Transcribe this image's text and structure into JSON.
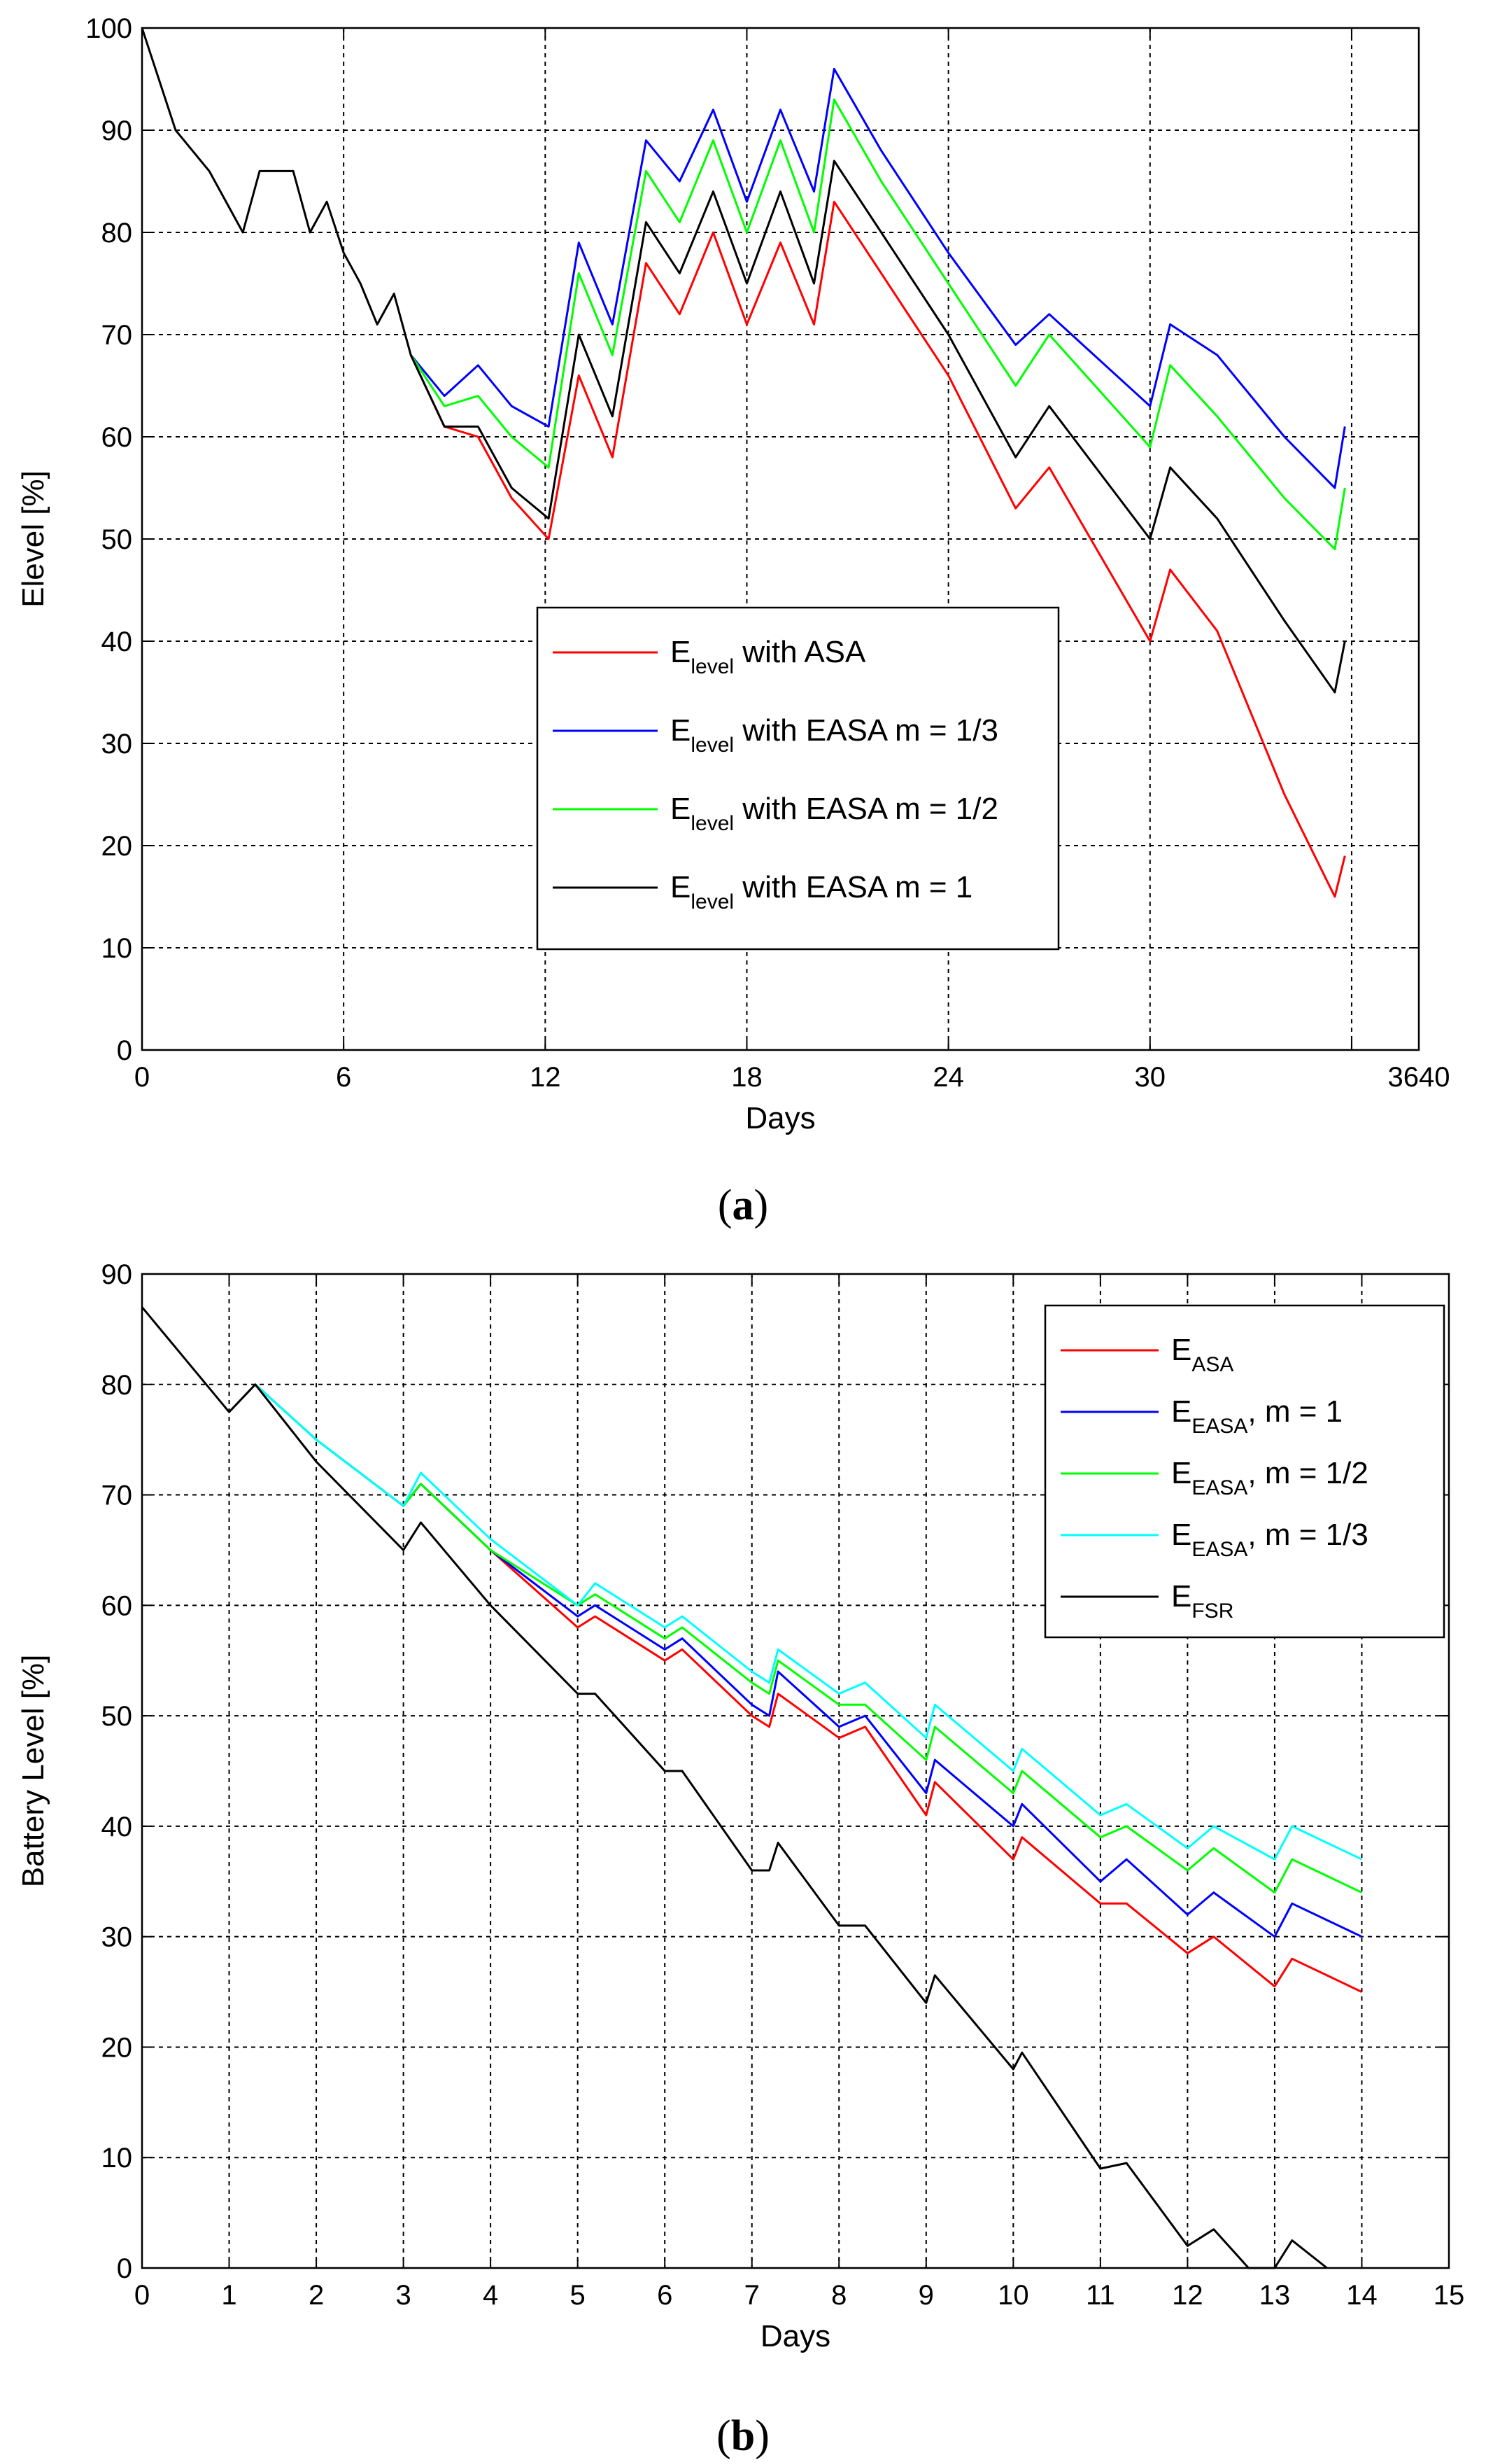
{
  "chart_data": [
    {
      "panel_label": "(a)",
      "type": "line",
      "xlabel": "Days",
      "ylabel": "Elevel [%]",
      "xlim": [
        0,
        38
      ],
      "ylim": [
        0,
        100
      ],
      "xticks": [
        0,
        6,
        12,
        18,
        24,
        30,
        36,
        40
      ],
      "xtick_labels": [
        "0",
        "6",
        "12",
        "18",
        "24",
        "30",
        "36",
        "40"
      ],
      "yticks": [
        0,
        10,
        20,
        30,
        40,
        50,
        60,
        70,
        80,
        90,
        100
      ],
      "grid": true,
      "legend": {
        "placement": "center-bottom"
      },
      "series": [
        {
          "name_main": "E",
          "name_sub": "level",
          "name_rest": " with ASA",
          "color": "#ff0000",
          "points": [
            [
              8,
              68
            ],
            [
              9,
              61
            ],
            [
              10,
              60
            ],
            [
              11,
              54
            ],
            [
              12.1,
              50
            ],
            [
              13,
              66
            ],
            [
              14,
              58
            ],
            [
              15,
              77
            ],
            [
              16,
              72
            ],
            [
              17,
              80
            ],
            [
              18,
              71
            ],
            [
              19,
              79
            ],
            [
              20,
              71
            ],
            [
              20.6,
              83
            ],
            [
              22,
              76
            ],
            [
              24,
              66
            ],
            [
              26,
              53
            ],
            [
              27,
              57
            ],
            [
              30,
              40
            ],
            [
              30.6,
              47
            ],
            [
              32,
              41
            ],
            [
              34,
              25
            ],
            [
              35.5,
              15
            ],
            [
              35.8,
              19
            ]
          ]
        },
        {
          "name_main": "E",
          "name_sub": "level",
          "name_rest": " with EASA m = 1/3",
          "color": "#0000ff",
          "points": [
            [
              8,
              68
            ],
            [
              9,
              64
            ],
            [
              10,
              67
            ],
            [
              11,
              63
            ],
            [
              12.1,
              61
            ],
            [
              13,
              79
            ],
            [
              14,
              71
            ],
            [
              15,
              89
            ],
            [
              16,
              85
            ],
            [
              17,
              92
            ],
            [
              18,
              83
            ],
            [
              19,
              92
            ],
            [
              20,
              84
            ],
            [
              20.6,
              96
            ],
            [
              22,
              88
            ],
            [
              24,
              78
            ],
            [
              26,
              69
            ],
            [
              27,
              72
            ],
            [
              30,
              63
            ],
            [
              30.6,
              71
            ],
            [
              32,
              68
            ],
            [
              34,
              60
            ],
            [
              35.5,
              55
            ],
            [
              35.8,
              61
            ]
          ]
        },
        {
          "name_main": "E",
          "name_sub": "level",
          "name_rest": " with EASA m = 1/2",
          "color": "#00ff00",
          "points": [
            [
              8,
              68
            ],
            [
              9,
              63
            ],
            [
              10,
              64
            ],
            [
              11,
              60
            ],
            [
              12.1,
              57
            ],
            [
              13,
              76
            ],
            [
              14,
              68
            ],
            [
              15,
              86
            ],
            [
              16,
              81
            ],
            [
              17,
              89
            ],
            [
              18,
              80
            ],
            [
              19,
              89
            ],
            [
              20,
              80
            ],
            [
              20.6,
              93
            ],
            [
              22,
              85
            ],
            [
              24,
              75
            ],
            [
              26,
              65
            ],
            [
              27,
              70
            ],
            [
              30,
              59
            ],
            [
              30.6,
              67
            ],
            [
              32,
              62
            ],
            [
              34,
              54
            ],
            [
              35.5,
              49
            ],
            [
              35.8,
              55
            ]
          ]
        },
        {
          "name_main": "E",
          "name_sub": "level",
          "name_rest": " with EASA m = 1",
          "color": "#000000",
          "points": [
            [
              0,
              100
            ],
            [
              1,
              90
            ],
            [
              2,
              86
            ],
            [
              3,
              80
            ],
            [
              3.5,
              86
            ],
            [
              4.5,
              86
            ],
            [
              5,
              80
            ],
            [
              5.5,
              83
            ],
            [
              6,
              78
            ],
            [
              6.5,
              75
            ],
            [
              7,
              71
            ],
            [
              7.5,
              74
            ],
            [
              8,
              68
            ],
            [
              9,
              61
            ],
            [
              10,
              61
            ],
            [
              11,
              55
            ],
            [
              12.1,
              52
            ],
            [
              13,
              70
            ],
            [
              14,
              62
            ],
            [
              15,
              81
            ],
            [
              16,
              76
            ],
            [
              17,
              84
            ],
            [
              18,
              75
            ],
            [
              19,
              84
            ],
            [
              20,
              75
            ],
            [
              20.6,
              87
            ],
            [
              22,
              80
            ],
            [
              24,
              70
            ],
            [
              26,
              58
            ],
            [
              27,
              63
            ],
            [
              30,
              50
            ],
            [
              30.6,
              57
            ],
            [
              32,
              52
            ],
            [
              34,
              42
            ],
            [
              35.5,
              35
            ],
            [
              35.8,
              40
            ]
          ]
        }
      ]
    },
    {
      "panel_label": "(b)",
      "type": "line",
      "xlabel": "Days",
      "ylabel": "Battery Level [%]",
      "xlim": [
        0,
        15
      ],
      "ylim": [
        0,
        90
      ],
      "xticks": [
        0,
        1,
        2,
        3,
        4,
        5,
        6,
        7,
        8,
        9,
        10,
        11,
        12,
        13,
        14,
        15
      ],
      "yticks": [
        0,
        10,
        20,
        30,
        40,
        50,
        60,
        70,
        80,
        90
      ],
      "grid": true,
      "legend": {
        "placement": "top-right"
      },
      "series": [
        {
          "name_main": "E",
          "name_sub": "ASA",
          "name_rest": "",
          "color": "#ff0000",
          "points": [
            [
              1.3,
              80
            ],
            [
              2,
              75
            ],
            [
              3,
              69
            ],
            [
              3.2,
              71
            ],
            [
              4,
              65
            ],
            [
              5,
              58
            ],
            [
              5.2,
              59
            ],
            [
              6,
              55
            ],
            [
              6.2,
              56
            ],
            [
              7,
              50
            ],
            [
              7.2,
              49
            ],
            [
              7.3,
              52
            ],
            [
              8,
              48
            ],
            [
              8.3,
              49
            ],
            [
              9,
              41
            ],
            [
              9.1,
              44
            ],
            [
              10,
              37
            ],
            [
              10.1,
              39
            ],
            [
              11,
              33
            ],
            [
              11.3,
              33
            ],
            [
              12,
              28.5
            ],
            [
              12.3,
              30
            ],
            [
              13,
              25.5
            ],
            [
              13.2,
              28
            ],
            [
              14,
              25
            ]
          ]
        },
        {
          "name_main": "E",
          "name_sub": "EASA",
          "name_rest": ", m = 1",
          "color": "#0000ff",
          "points": [
            [
              1.3,
              80
            ],
            [
              2,
              75
            ],
            [
              3,
              69
            ],
            [
              3.2,
              71
            ],
            [
              4,
              65
            ],
            [
              5,
              59
            ],
            [
              5.2,
              60
            ],
            [
              6,
              56
            ],
            [
              6.2,
              57
            ],
            [
              7,
              51
            ],
            [
              7.2,
              50
            ],
            [
              7.3,
              54
            ],
            [
              8,
              49
            ],
            [
              8.3,
              50
            ],
            [
              9,
              43
            ],
            [
              9.1,
              46
            ],
            [
              10,
              40
            ],
            [
              10.1,
              42
            ],
            [
              11,
              35
            ],
            [
              11.3,
              37
            ],
            [
              12,
              32
            ],
            [
              12.3,
              34
            ],
            [
              13,
              30
            ],
            [
              13.2,
              33
            ],
            [
              14,
              30
            ]
          ]
        },
        {
          "name_main": "E",
          "name_sub": "EASA",
          "name_rest": ", m = 1/2",
          "color": "#00ff00",
          "points": [
            [
              1.3,
              80
            ],
            [
              2,
              75
            ],
            [
              3,
              69
            ],
            [
              3.2,
              71
            ],
            [
              4,
              65
            ],
            [
              5,
              60
            ],
            [
              5.2,
              61
            ],
            [
              6,
              57
            ],
            [
              6.2,
              58
            ],
            [
              7,
              53
            ],
            [
              7.2,
              52
            ],
            [
              7.3,
              55
            ],
            [
              8,
              51
            ],
            [
              8.3,
              51
            ],
            [
              9,
              46
            ],
            [
              9.1,
              49
            ],
            [
              10,
              43
            ],
            [
              10.1,
              45
            ],
            [
              11,
              39
            ],
            [
              11.3,
              40
            ],
            [
              12,
              36
            ],
            [
              12.3,
              38
            ],
            [
              13,
              34
            ],
            [
              13.2,
              37
            ],
            [
              14,
              34
            ]
          ]
        },
        {
          "name_main": "E",
          "name_sub": "EASA",
          "name_rest": ", m = 1/3",
          "color": "#00ffff",
          "points": [
            [
              1.3,
              80
            ],
            [
              2,
              75
            ],
            [
              3,
              69
            ],
            [
              3.2,
              72
            ],
            [
              4,
              66
            ],
            [
              5,
              60
            ],
            [
              5.2,
              62
            ],
            [
              6,
              58
            ],
            [
              6.2,
              59
            ],
            [
              7,
              54
            ],
            [
              7.2,
              53
            ],
            [
              7.3,
              56
            ],
            [
              8,
              52
            ],
            [
              8.3,
              53
            ],
            [
              9,
              48
            ],
            [
              9.1,
              51
            ],
            [
              10,
              45
            ],
            [
              10.1,
              47
            ],
            [
              11,
              41
            ],
            [
              11.3,
              42
            ],
            [
              12,
              38
            ],
            [
              12.3,
              40
            ],
            [
              13,
              37
            ],
            [
              13.2,
              40
            ],
            [
              14,
              37
            ]
          ]
        },
        {
          "name_main": "E",
          "name_sub": "FSR",
          "name_rest": "",
          "color": "#000000",
          "points": [
            [
              0,
              87
            ],
            [
              1,
              77.5
            ],
            [
              1.3,
              80
            ],
            [
              2,
              73
            ],
            [
              3,
              65
            ],
            [
              3.2,
              67.5
            ],
            [
              4,
              60
            ],
            [
              5,
              52
            ],
            [
              5.2,
              52
            ],
            [
              6,
              45
            ],
            [
              6.2,
              45
            ],
            [
              7,
              36
            ],
            [
              7.2,
              36
            ],
            [
              7.3,
              38.5
            ],
            [
              8,
              31
            ],
            [
              8.3,
              31
            ],
            [
              9,
              24
            ],
            [
              9.1,
              26.5
            ],
            [
              10,
              18
            ],
            [
              10.1,
              19.5
            ],
            [
              11,
              9
            ],
            [
              11.3,
              9.5
            ],
            [
              12,
              2
            ],
            [
              12.3,
              3.5
            ],
            [
              12.7,
              0
            ],
            [
              13,
              0
            ],
            [
              13.2,
              2.5
            ],
            [
              13.6,
              0
            ]
          ]
        }
      ]
    }
  ]
}
